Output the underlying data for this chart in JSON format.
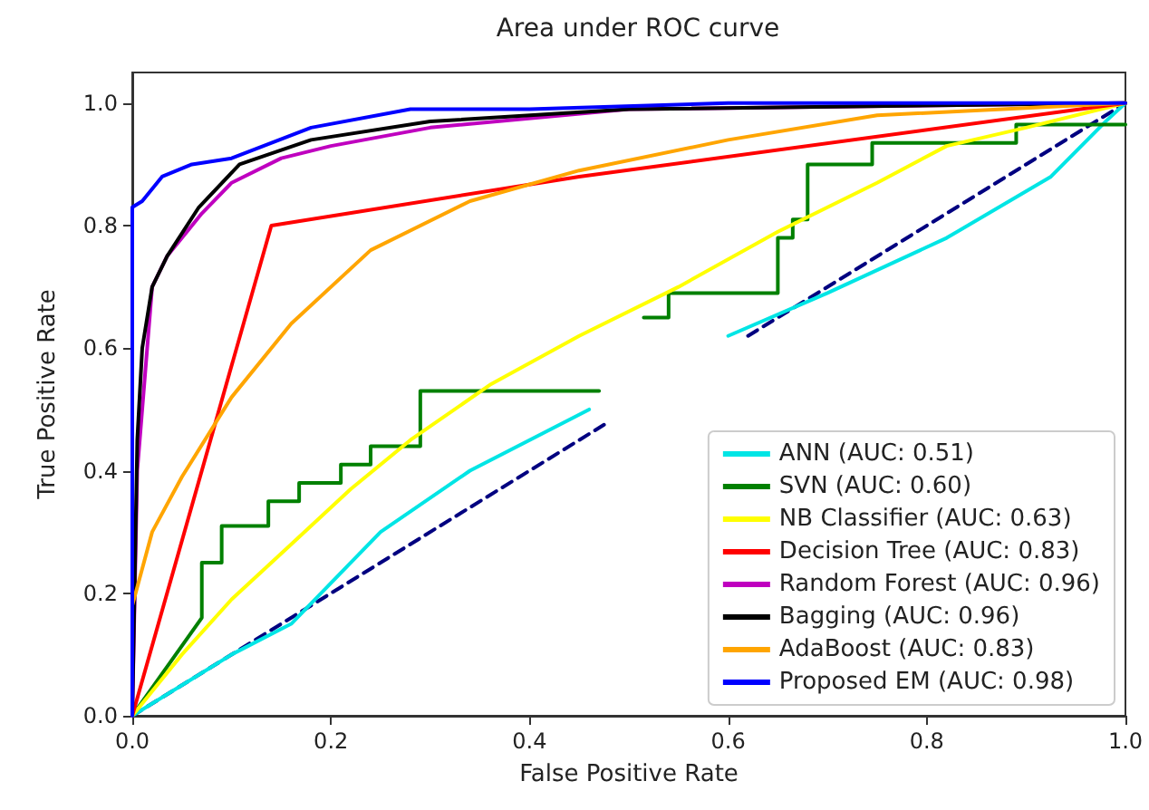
{
  "chart_data": {
    "type": "line",
    "title": "Area under ROC curve",
    "xlabel": "False Positive Rate",
    "ylabel": "True Positive Rate",
    "xlim": [
      0,
      1
    ],
    "ylim": [
      0,
      1.05
    ],
    "xticks": [
      {
        "value": 0,
        "label": "0.0"
      },
      {
        "value": 0.2,
        "label": "0.2"
      },
      {
        "value": 0.4,
        "label": "0.4"
      },
      {
        "value": 0.6,
        "label": "0.6"
      },
      {
        "value": 0.8,
        "label": "0.8"
      },
      {
        "value": 1,
        "label": "1.0"
      }
    ],
    "yticks": [
      {
        "value": 0,
        "label": "0.0"
      },
      {
        "value": 0.2,
        "label": "0.2"
      },
      {
        "value": 0.4,
        "label": "0.4"
      },
      {
        "value": 0.6,
        "label": "0.6"
      },
      {
        "value": 0.8,
        "label": "0.8"
      },
      {
        "value": 1,
        "label": "1.0"
      }
    ],
    "grid": false,
    "legend": "bottom right",
    "marker": "none",
    "line_style": "solid",
    "series": [
      {
        "color": "#000080",
        "line_style": "dashed",
        "x": [
          0,
          0.475,
          0.5,
          0.62,
          1
        ],
        "values": [
          0,
          0.475,
          null,
          0.62,
          1
        ]
      },
      {
        "name": "ANN (AUC: 0.51)",
        "color": "#00e5e5",
        "x": [
          0,
          0.05,
          0.1,
          0.16,
          0.25,
          0.34,
          0.46,
          0.5,
          0.6,
          0.7,
          0.82,
          0.925,
          0.98,
          1
        ],
        "values": [
          0,
          0.05,
          0.1,
          0.15,
          0.3,
          0.4,
          0.5,
          null,
          0.62,
          0.69,
          0.78,
          0.88,
          0.97,
          1
        ]
      },
      {
        "name": "SVN (AUC: 0.60)",
        "color": "#008000",
        "x": [
          0,
          0.07,
          0.07,
          0.09,
          0.09,
          0.137,
          0.137,
          0.168,
          0.168,
          0.21,
          0.21,
          0.24,
          0.24,
          0.29,
          0.29,
          0.47,
          0.5,
          0.515,
          0.54,
          0.54,
          0.65,
          0.65,
          0.665,
          0.665,
          0.68,
          0.68,
          0.745,
          0.745,
          0.89,
          0.89,
          1
        ],
        "values": [
          0,
          0.16,
          0.25,
          0.25,
          0.31,
          0.31,
          0.35,
          0.35,
          0.38,
          0.38,
          0.41,
          0.41,
          0.44,
          0.44,
          0.53,
          0.53,
          null,
          0.65,
          0.65,
          0.69,
          0.69,
          0.78,
          0.78,
          0.81,
          0.81,
          0.9,
          0.9,
          0.935,
          0.935,
          0.965,
          0.965
        ]
      },
      {
        "name": "NB Classifier (AUC: 0.63)",
        "color": "#ffff00",
        "x": [
          0,
          0.05,
          0.1,
          0.16,
          0.22,
          0.28,
          0.36,
          0.45,
          0.55,
          0.65,
          0.75,
          0.82,
          0.9,
          1
        ],
        "values": [
          0,
          0.1,
          0.19,
          0.28,
          0.37,
          0.45,
          0.54,
          0.62,
          0.7,
          0.79,
          0.87,
          0.93,
          0.96,
          1
        ]
      },
      {
        "name": "Decision Tree (AUC: 0.83)",
        "color": "#ff0000",
        "x": [
          0,
          0.14,
          0.45,
          1
        ],
        "values": [
          0,
          0.8,
          0.88,
          1
        ]
      },
      {
        "name": "Random Forest (AUC: 0.96)",
        "color": "#bf00bf",
        "x": [
          0,
          0.005,
          0.02,
          0.035,
          0.07,
          0.1,
          0.15,
          0.2,
          0.3,
          0.5,
          1
        ],
        "values": [
          0,
          0.4,
          0.7,
          0.75,
          0.82,
          0.87,
          0.91,
          0.93,
          0.96,
          0.99,
          1
        ]
      },
      {
        "name": "Bagging (AUC: 0.96)",
        "color": "#000000",
        "x": [
          0,
          0.005,
          0.01,
          0.02,
          0.035,
          0.067,
          0.108,
          0.18,
          0.3,
          0.5,
          1
        ],
        "values": [
          0,
          0.45,
          0.6,
          0.7,
          0.75,
          0.83,
          0.9,
          0.94,
          0.97,
          0.99,
          1
        ]
      },
      {
        "name": "AdaBoost (AUC: 0.83)",
        "color": "#ffa500",
        "x": [
          0,
          0,
          0.02,
          0.05,
          0.1,
          0.16,
          0.24,
          0.34,
          0.45,
          0.6,
          0.75,
          1
        ],
        "values": [
          0,
          0.18,
          0.3,
          0.39,
          0.52,
          0.64,
          0.76,
          0.84,
          0.89,
          0.94,
          0.98,
          1
        ]
      },
      {
        "name": "Proposed EM (AUC: 0.98)",
        "color": "#0000ff",
        "x": [
          0,
          0,
          0.01,
          0.03,
          0.06,
          0.1,
          0.18,
          0.28,
          0.4,
          0.6,
          1
        ],
        "values": [
          0,
          0.83,
          0.84,
          0.88,
          0.9,
          0.91,
          0.96,
          0.99,
          0.99,
          1,
          1
        ]
      }
    ]
  }
}
